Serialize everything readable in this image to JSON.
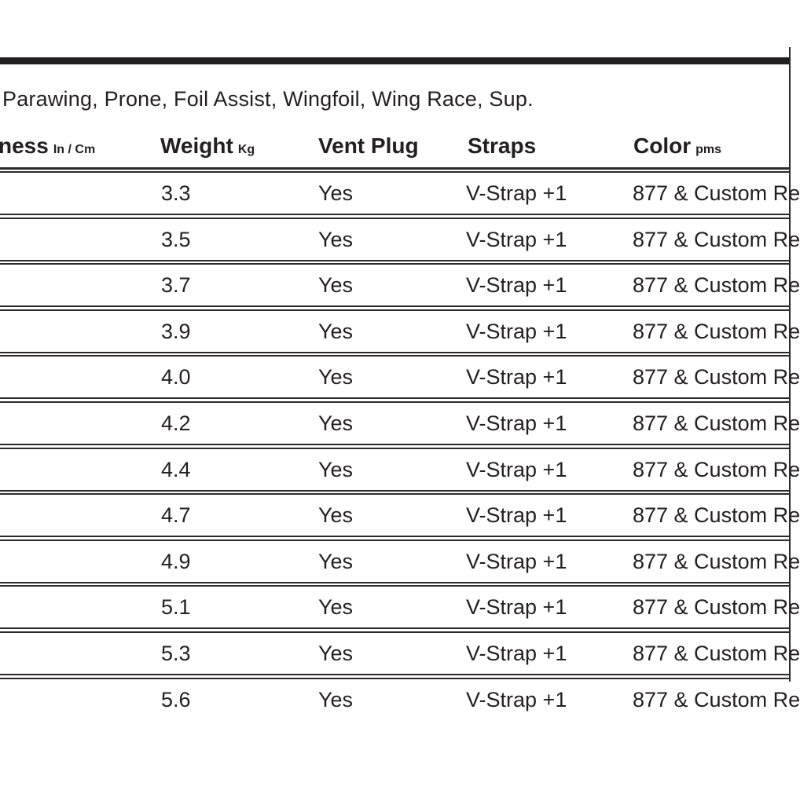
{
  "page": {
    "category_line": "Parawing, Prone, Foil Assist, Wingfoil, Wing Race, Sup.",
    "bar_color": "#231f20",
    "line_color": "#2d292a",
    "text_color": "#231f20"
  },
  "table": {
    "columns": [
      {
        "label": "ness",
        "unit": "In / Cm"
      },
      {
        "label": "Weight",
        "unit": "Kg"
      },
      {
        "label": "Vent Plug",
        "unit": ""
      },
      {
        "label": "Straps",
        "unit": ""
      },
      {
        "label": "Color",
        "unit": "pms"
      }
    ],
    "rows": [
      {
        "weight_kg": "3.3",
        "vent_plug": "Yes",
        "straps": "V-Strap +1",
        "color": "877 & Custom Re"
      },
      {
        "weight_kg": "3.5",
        "vent_plug": "Yes",
        "straps": "V-Strap +1",
        "color": "877 & Custom Re"
      },
      {
        "weight_kg": "3.7",
        "vent_plug": "Yes",
        "straps": "V-Strap +1",
        "color": "877 & Custom Re"
      },
      {
        "weight_kg": "3.9",
        "vent_plug": "Yes",
        "straps": "V-Strap +1",
        "color": "877 & Custom Re"
      },
      {
        "weight_kg": "4.0",
        "vent_plug": "Yes",
        "straps": "V-Strap +1",
        "color": "877 & Custom Re"
      },
      {
        "weight_kg": "4.2",
        "vent_plug": "Yes",
        "straps": "V-Strap +1",
        "color": "877 & Custom Re"
      },
      {
        "weight_kg": "4.4",
        "vent_plug": "Yes",
        "straps": "V-Strap +1",
        "color": "877 & Custom Re"
      },
      {
        "weight_kg": "4.7",
        "vent_plug": "Yes",
        "straps": "V-Strap +1",
        "color": "877 & Custom Re"
      },
      {
        "weight_kg": "4.9",
        "vent_plug": "Yes",
        "straps": "V-Strap +1",
        "color": "877 & Custom Re"
      },
      {
        "weight_kg": "5.1",
        "vent_plug": "Yes",
        "straps": "V-Strap +1",
        "color": "877 & Custom Re"
      },
      {
        "weight_kg": "5.3",
        "vent_plug": "Yes",
        "straps": "V-Strap +1",
        "color": "877 & Custom Re"
      },
      {
        "weight_kg": "5.6",
        "vent_plug": "Yes",
        "straps": "V-Strap +1",
        "color": "877 & Custom Re"
      }
    ]
  }
}
